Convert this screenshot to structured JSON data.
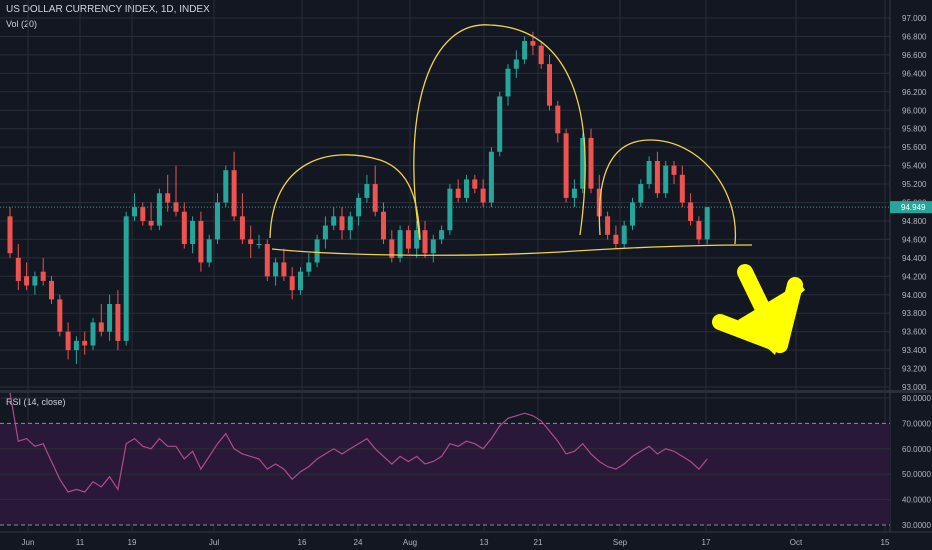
{
  "header": {
    "symbol_line": "US DOLLAR CURRENCY INDEX, 1D, INDEX",
    "volume_label": "Vol (20)",
    "rsi_label": "RSI (14, close)",
    "last_price": "94.949"
  },
  "colors": {
    "background": "#131722",
    "grid": "#2a2e39",
    "up": "#26a69a",
    "down": "#ef5350",
    "annotation": "#f2d24b",
    "arrow": "#ffff00",
    "rsi_line": "#b04a8f",
    "rsi_band": "#2a1838",
    "last_price_line": "#26a69a"
  },
  "chart_data": [
    {
      "type": "candlestick",
      "title": "US DOLLAR CURRENCY INDEX, 1D, INDEX",
      "ylim": [
        93.0,
        97.1
      ],
      "y_ticks": [
        "97.000",
        "96.800",
        "96.600",
        "96.400",
        "96.200",
        "96.000",
        "95.800",
        "95.600",
        "95.400",
        "95.200",
        "95.000",
        "94.800",
        "94.600",
        "94.400",
        "94.200",
        "94.000",
        "93.800",
        "93.600",
        "93.400",
        "93.200",
        "93.000"
      ],
      "x_ticks": [
        "Jun",
        "11",
        "19",
        "Jul",
        "16",
        "24",
        "Aug",
        "13",
        "21",
        "Sep",
        "17",
        "Oct",
        "15"
      ],
      "candles": [
        {
          "o": 94.85,
          "h": 94.95,
          "l": 94.4,
          "c": 94.45
        },
        {
          "o": 94.4,
          "h": 94.55,
          "l": 94.05,
          "c": 94.15
        },
        {
          "o": 94.2,
          "h": 94.35,
          "l": 94.05,
          "c": 94.1
        },
        {
          "o": 94.1,
          "h": 94.25,
          "l": 94.0,
          "c": 94.2
        },
        {
          "o": 94.25,
          "h": 94.4,
          "l": 94.1,
          "c": 94.15
        },
        {
          "o": 94.15,
          "h": 94.2,
          "l": 93.9,
          "c": 93.95
        },
        {
          "o": 93.95,
          "h": 94.0,
          "l": 93.55,
          "c": 93.6
        },
        {
          "o": 93.6,
          "h": 93.7,
          "l": 93.3,
          "c": 93.4
        },
        {
          "o": 93.4,
          "h": 93.55,
          "l": 93.25,
          "c": 93.5
        },
        {
          "o": 93.5,
          "h": 93.6,
          "l": 93.35,
          "c": 93.45
        },
        {
          "o": 93.45,
          "h": 93.75,
          "l": 93.4,
          "c": 93.7
        },
        {
          "o": 93.7,
          "h": 93.9,
          "l": 93.55,
          "c": 93.6
        },
        {
          "o": 93.6,
          "h": 94.0,
          "l": 93.5,
          "c": 93.9
        },
        {
          "o": 93.9,
          "h": 94.05,
          "l": 93.4,
          "c": 93.5
        },
        {
          "o": 93.5,
          "h": 94.9,
          "l": 93.45,
          "c": 94.85
        },
        {
          "o": 94.85,
          "h": 95.1,
          "l": 94.8,
          "c": 94.95
        },
        {
          "o": 94.95,
          "h": 95.0,
          "l": 94.75,
          "c": 94.8
        },
        {
          "o": 94.8,
          "h": 95.0,
          "l": 94.7,
          "c": 94.75
        },
        {
          "o": 94.75,
          "h": 95.15,
          "l": 94.7,
          "c": 95.1
        },
        {
          "o": 95.1,
          "h": 95.3,
          "l": 94.9,
          "c": 95.0
        },
        {
          "o": 95.0,
          "h": 95.4,
          "l": 94.85,
          "c": 94.9
        },
        {
          "o": 94.9,
          "h": 95.0,
          "l": 94.5,
          "c": 94.55
        },
        {
          "o": 94.55,
          "h": 94.85,
          "l": 94.45,
          "c": 94.8
        },
        {
          "o": 94.8,
          "h": 94.9,
          "l": 94.25,
          "c": 94.35
        },
        {
          "o": 94.35,
          "h": 94.65,
          "l": 94.3,
          "c": 94.6
        },
        {
          "o": 94.6,
          "h": 95.1,
          "l": 94.55,
          "c": 95.0
        },
        {
          "o": 95.0,
          "h": 95.4,
          "l": 94.95,
          "c": 95.35
        },
        {
          "o": 95.35,
          "h": 95.55,
          "l": 94.8,
          "c": 94.85
        },
        {
          "o": 94.85,
          "h": 95.1,
          "l": 94.55,
          "c": 94.6
        },
        {
          "o": 94.6,
          "h": 94.75,
          "l": 94.4,
          "c": 94.55
        },
        {
          "o": 94.55,
          "h": 94.65,
          "l": 94.5,
          "c": 94.55
        },
        {
          "o": 94.55,
          "h": 94.6,
          "l": 94.15,
          "c": 94.2
        },
        {
          "o": 94.2,
          "h": 94.4,
          "l": 94.1,
          "c": 94.35
        },
        {
          "o": 94.35,
          "h": 94.5,
          "l": 94.15,
          "c": 94.2
        },
        {
          "o": 94.2,
          "h": 94.3,
          "l": 93.95,
          "c": 94.05
        },
        {
          "o": 94.05,
          "h": 94.3,
          "l": 94.0,
          "c": 94.25
        },
        {
          "o": 94.25,
          "h": 94.45,
          "l": 94.2,
          "c": 94.35
        },
        {
          "o": 94.35,
          "h": 94.65,
          "l": 94.3,
          "c": 94.6
        },
        {
          "o": 94.6,
          "h": 94.85,
          "l": 94.5,
          "c": 94.75
        },
        {
          "o": 94.75,
          "h": 94.95,
          "l": 94.7,
          "c": 94.85
        },
        {
          "o": 94.85,
          "h": 94.95,
          "l": 94.6,
          "c": 94.7
        },
        {
          "o": 94.7,
          "h": 94.9,
          "l": 94.6,
          "c": 94.85
        },
        {
          "o": 94.85,
          "h": 95.1,
          "l": 94.75,
          "c": 95.05
        },
        {
          "o": 95.05,
          "h": 95.3,
          "l": 95.0,
          "c": 95.2
        },
        {
          "o": 95.2,
          "h": 95.4,
          "l": 94.85,
          "c": 94.9
        },
        {
          "o": 94.9,
          "h": 95.0,
          "l": 94.55,
          "c": 94.6
        },
        {
          "o": 94.6,
          "h": 94.7,
          "l": 94.35,
          "c": 94.4
        },
        {
          "o": 94.4,
          "h": 94.75,
          "l": 94.35,
          "c": 94.7
        },
        {
          "o": 94.7,
          "h": 94.75,
          "l": 94.45,
          "c": 94.5
        },
        {
          "o": 94.5,
          "h": 94.8,
          "l": 94.4,
          "c": 94.7
        },
        {
          "o": 94.7,
          "h": 94.8,
          "l": 94.4,
          "c": 94.45
        },
        {
          "o": 94.45,
          "h": 94.65,
          "l": 94.35,
          "c": 94.6
        },
        {
          "o": 94.6,
          "h": 94.75,
          "l": 94.55,
          "c": 94.7
        },
        {
          "o": 94.7,
          "h": 95.2,
          "l": 94.65,
          "c": 95.15
        },
        {
          "o": 95.15,
          "h": 95.25,
          "l": 95.0,
          "c": 95.05
        },
        {
          "o": 95.05,
          "h": 95.3,
          "l": 95.0,
          "c": 95.25
        },
        {
          "o": 95.25,
          "h": 95.3,
          "l": 95.1,
          "c": 95.15
        },
        {
          "o": 95.15,
          "h": 95.25,
          "l": 94.95,
          "c": 95.0
        },
        {
          "o": 95.0,
          "h": 95.6,
          "l": 94.95,
          "c": 95.55
        },
        {
          "o": 95.55,
          "h": 96.2,
          "l": 95.5,
          "c": 96.15
        },
        {
          "o": 96.15,
          "h": 96.5,
          "l": 96.05,
          "c": 96.45
        },
        {
          "o": 96.45,
          "h": 96.65,
          "l": 96.35,
          "c": 96.55
        },
        {
          "o": 96.55,
          "h": 96.8,
          "l": 96.5,
          "c": 96.75
        },
        {
          "o": 96.75,
          "h": 96.85,
          "l": 96.6,
          "c": 96.7
        },
        {
          "o": 96.7,
          "h": 96.75,
          "l": 96.45,
          "c": 96.5
        },
        {
          "o": 96.5,
          "h": 96.6,
          "l": 96.0,
          "c": 96.05
        },
        {
          "o": 96.05,
          "h": 96.1,
          "l": 95.65,
          "c": 95.75
        },
        {
          "o": 95.75,
          "h": 95.8,
          "l": 95.0,
          "c": 95.05
        },
        {
          "o": 95.05,
          "h": 95.25,
          "l": 94.95,
          "c": 95.15
        },
        {
          "o": 95.15,
          "h": 95.75,
          "l": 95.1,
          "c": 95.7
        },
        {
          "o": 95.7,
          "h": 95.8,
          "l": 95.1,
          "c": 95.15
        },
        {
          "o": 95.15,
          "h": 95.3,
          "l": 94.8,
          "c": 94.85
        },
        {
          "o": 94.85,
          "h": 94.9,
          "l": 94.6,
          "c": 94.65
        },
        {
          "o": 94.65,
          "h": 94.75,
          "l": 94.5,
          "c": 94.55
        },
        {
          "o": 94.55,
          "h": 94.8,
          "l": 94.5,
          "c": 94.75
        },
        {
          "o": 94.75,
          "h": 95.05,
          "l": 94.7,
          "c": 95.0
        },
        {
          "o": 95.0,
          "h": 95.25,
          "l": 94.95,
          "c": 95.2
        },
        {
          "o": 95.2,
          "h": 95.5,
          "l": 95.15,
          "c": 95.45
        },
        {
          "o": 95.45,
          "h": 95.55,
          "l": 95.05,
          "c": 95.1
        },
        {
          "o": 95.1,
          "h": 95.45,
          "l": 95.05,
          "c": 95.4
        },
        {
          "o": 95.4,
          "h": 95.45,
          "l": 95.2,
          "c": 95.3
        },
        {
          "o": 95.3,
          "h": 95.4,
          "l": 94.95,
          "c": 95.0
        },
        {
          "o": 95.0,
          "h": 95.1,
          "l": 94.75,
          "c": 94.8
        },
        {
          "o": 94.8,
          "h": 94.85,
          "l": 94.55,
          "c": 94.6
        },
        {
          "o": 94.6,
          "h": 94.95,
          "l": 94.55,
          "c": 94.95
        }
      ]
    },
    {
      "type": "line",
      "title": "RSI (14, close)",
      "ylim": [
        28.0,
        82.0
      ],
      "y_ticks": [
        "80.0000",
        "70.0000",
        "60.0000",
        "50.0000",
        "40.0000",
        "30.0000"
      ],
      "band": [
        30,
        70
      ],
      "values": [
        82,
        63,
        64,
        61,
        62,
        55,
        48,
        43,
        44,
        43,
        47,
        45,
        49,
        44,
        62,
        64,
        61,
        60,
        64,
        61,
        61,
        56,
        59,
        52,
        57,
        62,
        66,
        60,
        58,
        57,
        56,
        52,
        54,
        52,
        48,
        51,
        53,
        56,
        58,
        60,
        58,
        60,
        62,
        64,
        60,
        57,
        54,
        57,
        55,
        57,
        54,
        55,
        57,
        62,
        61,
        63,
        62,
        60,
        64,
        69,
        72,
        73,
        74,
        73,
        71,
        67,
        63,
        58,
        59,
        62,
        58,
        55,
        53,
        52,
        54,
        57,
        59,
        61,
        58,
        60,
        59,
        57,
        55,
        52,
        56
      ]
    }
  ]
}
